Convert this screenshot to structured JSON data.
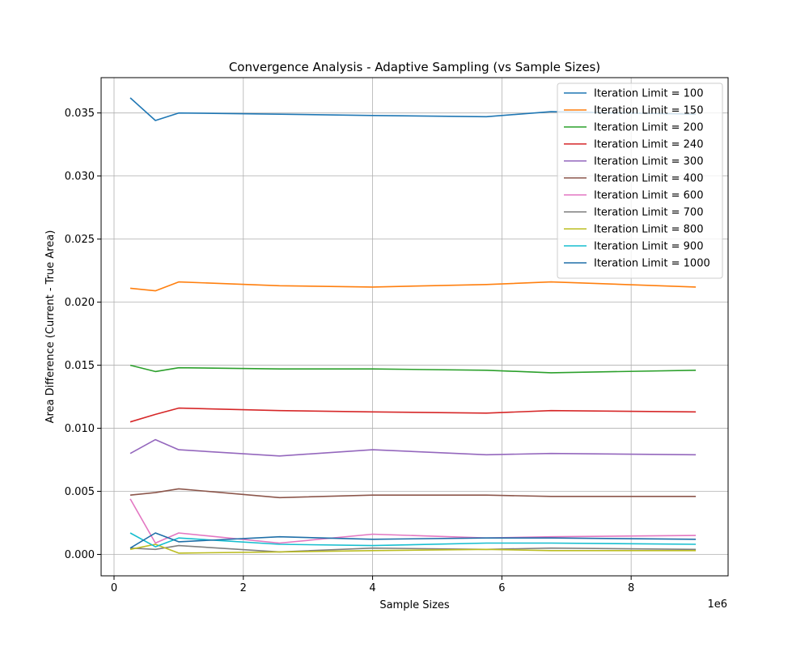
{
  "chart_data": {
    "type": "line",
    "title": "Convergence Analysis - Adaptive Sampling (vs Sample Sizes)",
    "xlabel": "Sample Sizes",
    "ylabel": "Area Difference (Current - True Area)",
    "x_offset_label": "1e6",
    "xlim": [
      -200000,
      9500000
    ],
    "ylim": [
      -0.0017,
      0.0378
    ],
    "x_ticks": [
      0,
      2000000,
      4000000,
      6000000,
      8000000
    ],
    "x_tick_labels": [
      "0",
      "2",
      "4",
      "6",
      "8"
    ],
    "y_ticks": [
      0.0,
      0.005,
      0.01,
      0.015,
      0.02,
      0.025,
      0.03,
      0.035
    ],
    "y_tick_labels": [
      "0.000",
      "0.005",
      "0.010",
      "0.015",
      "0.020",
      "0.025",
      "0.030",
      "0.035"
    ],
    "grid": true,
    "legend_position": "upper-right",
    "x": [
      250000,
      640000,
      1000000,
      2560000,
      4000000,
      5760000,
      6760000,
      9000000
    ],
    "series": [
      {
        "name": "Iteration Limit = 100",
        "color": "#1f77b4",
        "values": [
          0.0362,
          0.0344,
          0.035,
          0.0349,
          0.0348,
          0.0347,
          0.0351,
          0.0349
        ]
      },
      {
        "name": "Iteration Limit = 150",
        "color": "#ff7f0e",
        "values": [
          0.0211,
          0.0209,
          0.0216,
          0.0213,
          0.0212,
          0.0214,
          0.0216,
          0.0212
        ]
      },
      {
        "name": "Iteration Limit = 200",
        "color": "#2ca02c",
        "values": [
          0.015,
          0.0145,
          0.0148,
          0.0147,
          0.0147,
          0.0146,
          0.0144,
          0.0146
        ]
      },
      {
        "name": "Iteration Limit = 240",
        "color": "#d62728",
        "values": [
          0.0105,
          0.0111,
          0.0116,
          0.0114,
          0.0113,
          0.0112,
          0.0114,
          0.0113
        ]
      },
      {
        "name": "Iteration Limit = 300",
        "color": "#9467bd",
        "values": [
          0.008,
          0.0091,
          0.0083,
          0.0078,
          0.0083,
          0.0079,
          0.008,
          0.0079
        ]
      },
      {
        "name": "Iteration Limit = 400",
        "color": "#8c564b",
        "values": [
          0.0047,
          0.0049,
          0.0052,
          0.0045,
          0.0047,
          0.0047,
          0.0046,
          0.0046
        ]
      },
      {
        "name": "Iteration Limit = 600",
        "color": "#e377c2",
        "values": [
          0.0044,
          0.0009,
          0.0017,
          0.0009,
          0.0016,
          0.0013,
          0.0014,
          0.0015
        ]
      },
      {
        "name": "Iteration Limit = 700",
        "color": "#7f7f7f",
        "values": [
          0.0005,
          0.0004,
          0.0007,
          0.0002,
          0.0005,
          0.0004,
          0.0005,
          0.0004
        ]
      },
      {
        "name": "Iteration Limit = 800",
        "color": "#bcbd22",
        "values": [
          0.0004,
          0.0008,
          0.0001,
          0.0002,
          0.0003,
          0.0004,
          0.0003,
          0.0003
        ]
      },
      {
        "name": "Iteration Limit = 900",
        "color": "#17becf",
        "values": [
          0.0017,
          0.0006,
          0.0013,
          0.0008,
          0.0007,
          0.0009,
          0.0009,
          0.0008
        ]
      },
      {
        "name": "Iteration Limit = 1000",
        "color": "#1f6fa8",
        "values": [
          0.0005,
          0.0017,
          0.001,
          0.0014,
          0.0012,
          0.0013,
          0.0013,
          0.0012
        ]
      }
    ]
  }
}
